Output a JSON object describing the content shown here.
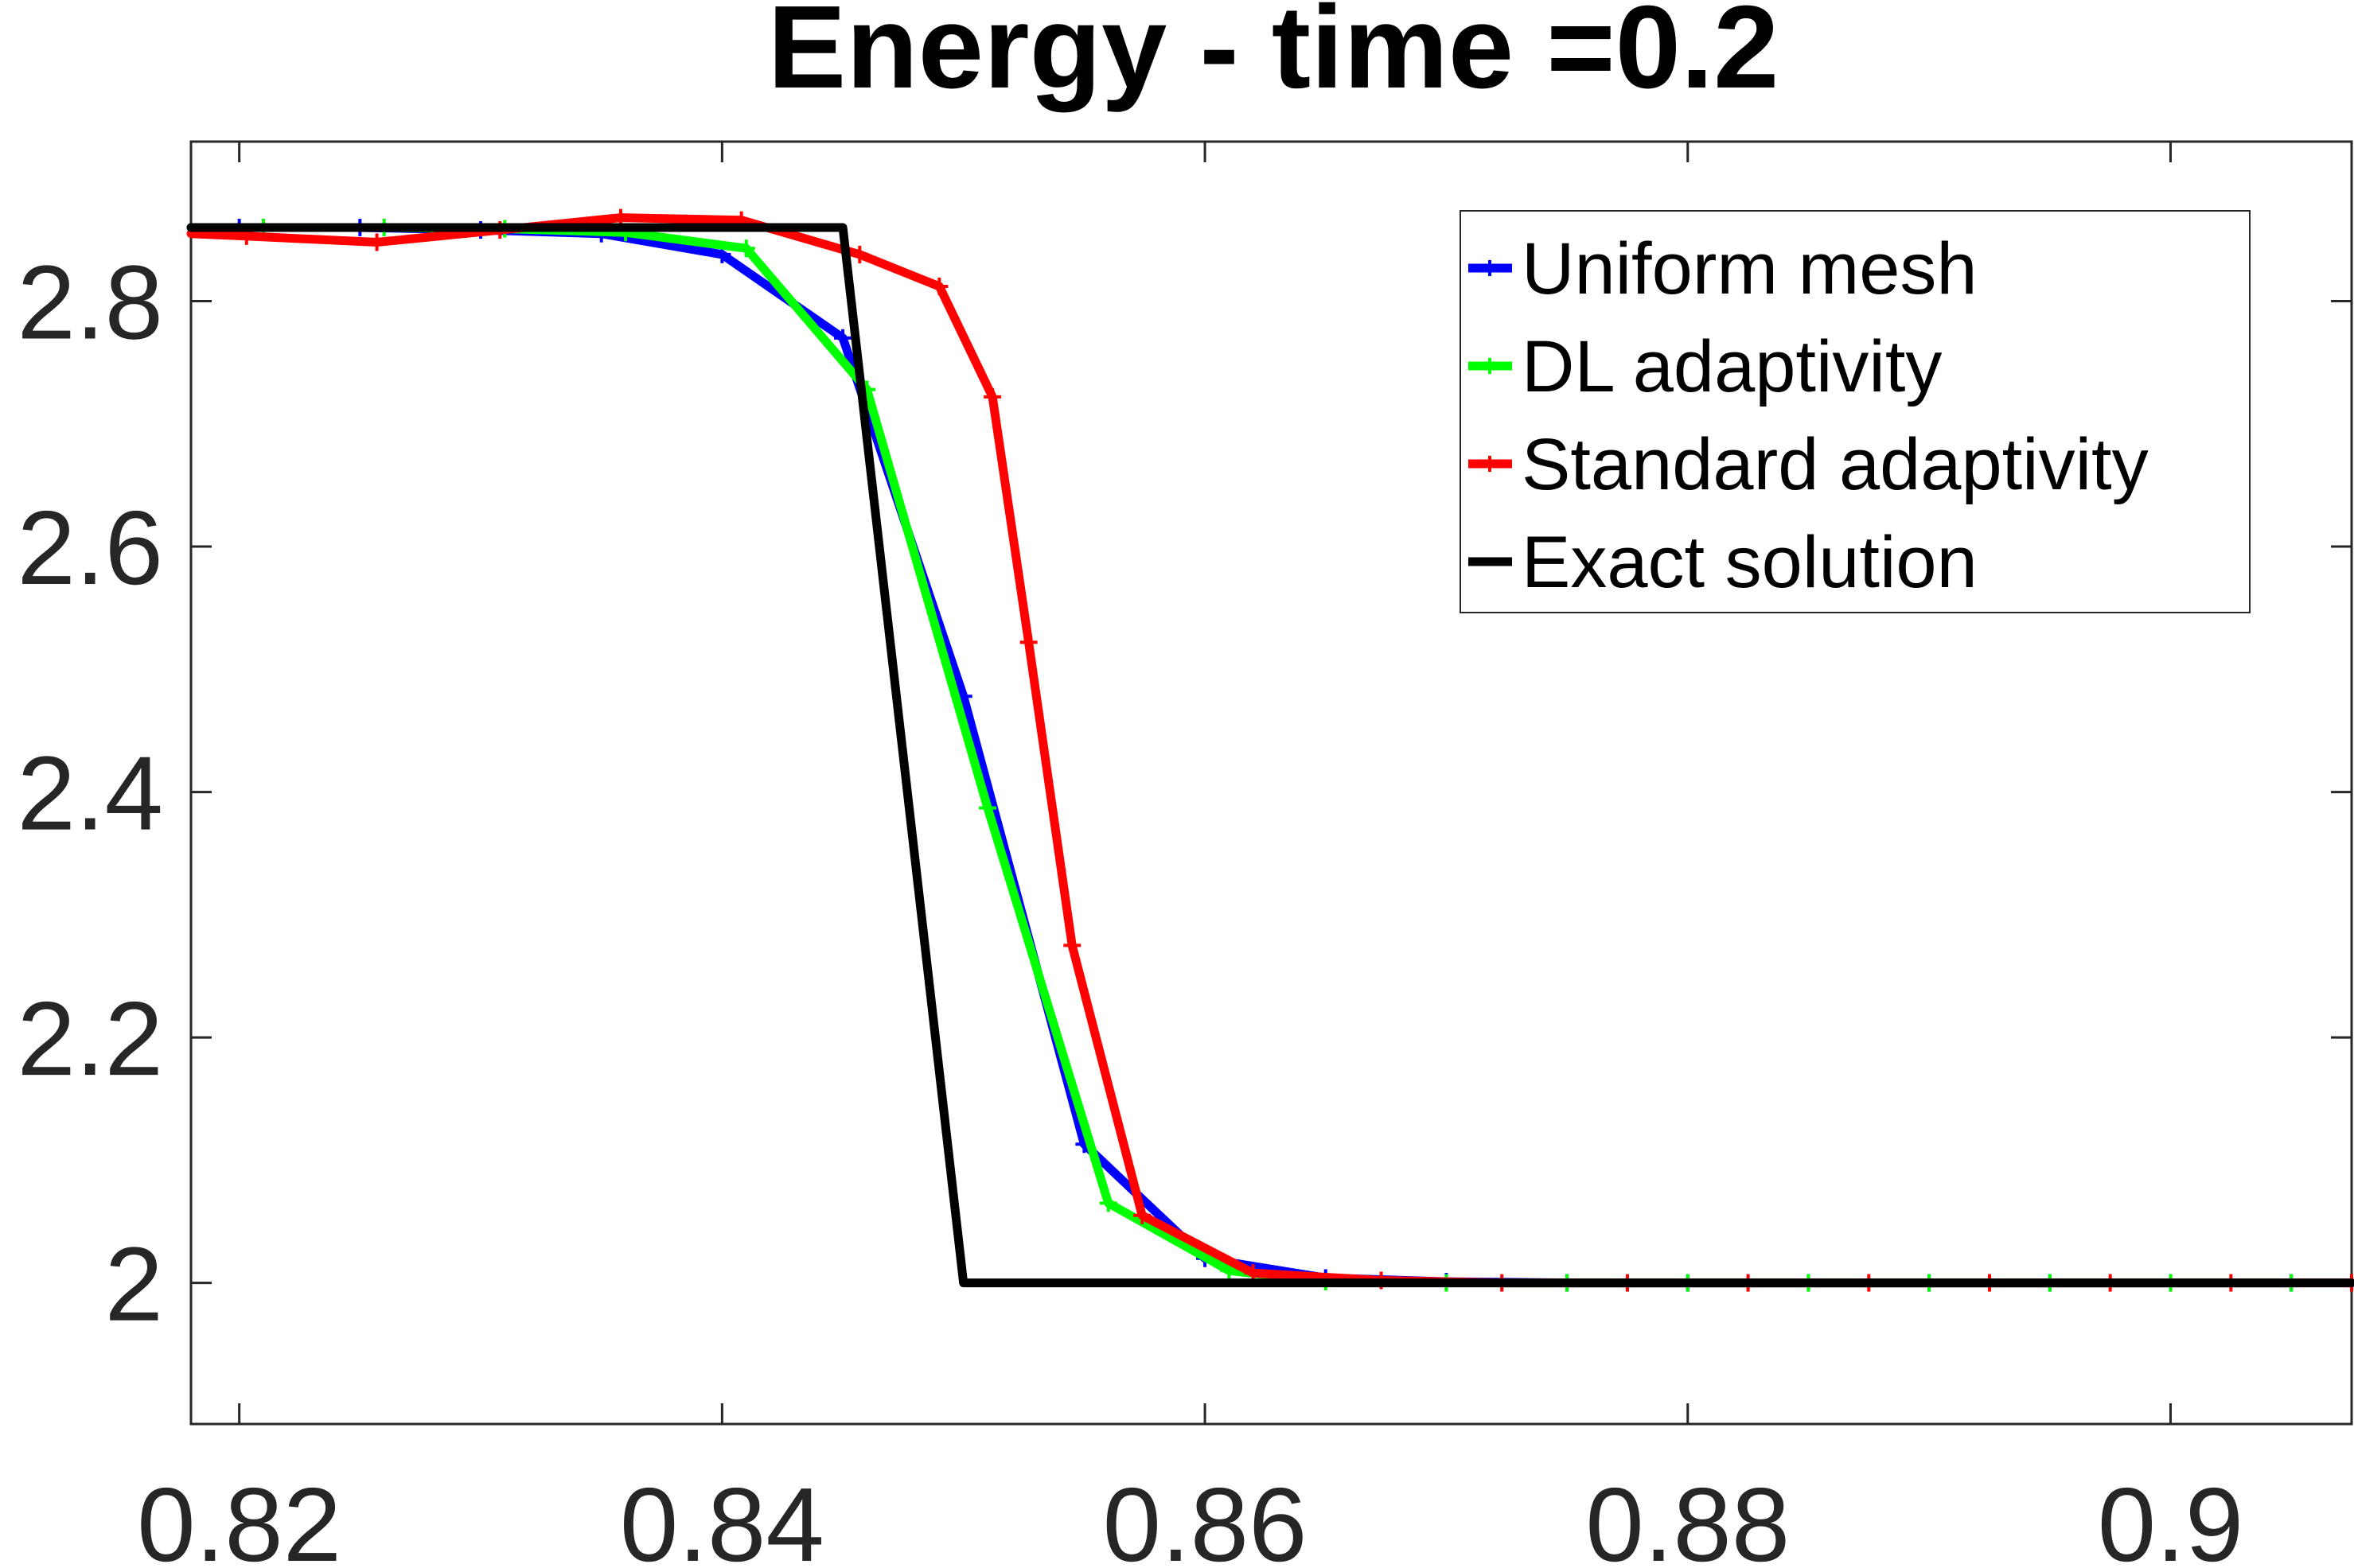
{
  "chart_data": {
    "type": "line",
    "title": "Energy - time =0.2",
    "xlabel": "",
    "ylabel": "",
    "xlim": [
      0.818,
      0.9075
    ],
    "ylim": [
      1.885,
      2.93
    ],
    "xticks": [
      {
        "value": 0.82,
        "label": "0.82"
      },
      {
        "value": 0.84,
        "label": "0.84"
      },
      {
        "value": 0.86,
        "label": "0.86"
      },
      {
        "value": 0.88,
        "label": "0.88"
      },
      {
        "value": 0.9,
        "label": "0.9"
      }
    ],
    "yticks": [
      {
        "value": 2.0,
        "label": "2"
      },
      {
        "value": 2.2,
        "label": "2.2"
      },
      {
        "value": 2.4,
        "label": "2.4"
      },
      {
        "value": 2.6,
        "label": "2.6"
      },
      {
        "value": 2.8,
        "label": "2.8"
      }
    ],
    "grid": false,
    "legend": "top-right",
    "series": [
      {
        "name": "Uniform mesh",
        "color": "#0000ff",
        "markers": true,
        "x": [
          0.818,
          0.82,
          0.825,
          0.83,
          0.835,
          0.84,
          0.845,
          0.85,
          0.855,
          0.86,
          0.865,
          0.87,
          0.875,
          0.88,
          0.885,
          0.89,
          0.895,
          0.9,
          0.905
        ],
        "y": [
          2.86,
          2.86,
          2.86,
          2.858,
          2.855,
          2.838,
          2.77,
          2.478,
          2.113,
          2.02,
          2.004,
          2.001,
          2.0,
          2.0,
          2.0,
          2.0,
          2.0,
          2.0,
          2.0
        ]
      },
      {
        "name": "DL adaptivity",
        "color": "#00ff00",
        "markers": true,
        "x": [
          0.818,
          0.821,
          0.826,
          0.831,
          0.836,
          0.841,
          0.846,
          0.851,
          0.856,
          0.861,
          0.865,
          0.87,
          0.875,
          0.88,
          0.885,
          0.89,
          0.895,
          0.9,
          0.905
        ],
        "y": [
          2.86,
          2.86,
          2.86,
          2.859,
          2.856,
          2.843,
          2.728,
          2.387,
          2.065,
          2.01,
          2.001,
          2.0,
          2.0,
          2.0,
          2.0,
          2.0,
          2.0,
          2.0,
          2.0
        ]
      },
      {
        "name": "Standard adaptivity",
        "color": "#ff0000",
        "markers": true,
        "x": [
          0.818,
          0.8203,
          0.8257,
          0.8308,
          0.8358,
          0.8408,
          0.8457,
          0.849,
          0.8512,
          0.8527,
          0.8545,
          0.8574,
          0.862,
          0.8673,
          0.8723,
          0.8775,
          0.8825,
          0.8875,
          0.8925,
          0.8975,
          0.9025,
          0.9075
        ],
        "y": [
          2.855,
          2.853,
          2.848,
          2.858,
          2.868,
          2.866,
          2.838,
          2.812,
          2.722,
          2.522,
          2.275,
          2.055,
          2.008,
          2.002,
          2.0,
          2.0,
          2.0,
          2.0,
          2.0,
          2.0,
          2.0,
          2.0
        ]
      },
      {
        "name": "Exact solution",
        "color": "#000000",
        "markers": false,
        "x": [
          0.818,
          0.845,
          0.85,
          0.9075
        ],
        "y": [
          2.86,
          2.86,
          2.0,
          2.0
        ]
      }
    ]
  }
}
